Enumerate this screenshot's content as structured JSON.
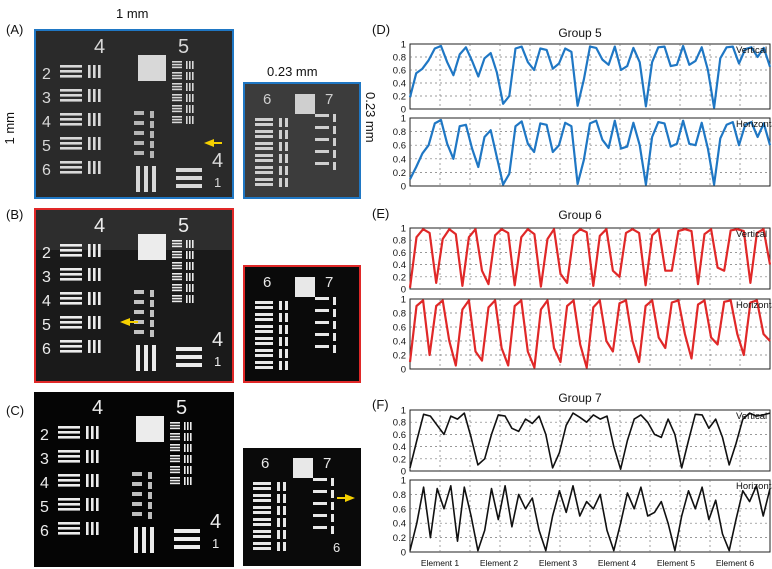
{
  "figure": {
    "panel_labels": [
      "(A)",
      "(B)",
      "(C)",
      "(D)",
      "(E)",
      "(F)"
    ],
    "scale_top": "1 mm",
    "scale_left": "1 mm",
    "inset_top": "0.23 mm",
    "inset_right": "0.23 mm"
  },
  "target": {
    "group_labels": [
      "4",
      "5",
      "4",
      "1"
    ],
    "row_numbers": [
      "2",
      "3",
      "4",
      "5",
      "6"
    ],
    "inset_rows": [
      {
        "group_labels": [
          "6",
          "7"
        ]
      },
      {
        "group_labels": [
          "6",
          "7"
        ]
      },
      {
        "group_labels": [
          "6",
          "7",
          "6"
        ]
      }
    ]
  },
  "colors": {
    "blue": "#1f77c4",
    "red": "#e02828",
    "black": "#111111",
    "arrow": "#f5d000"
  },
  "chart_data": [
    {
      "type": "line",
      "title": "Group 5",
      "subplots": [
        {
          "label": "Vertical",
          "color": "#1f77c4",
          "y": [
            0.18,
            0.55,
            0.62,
            0.75,
            0.93,
            0.97,
            0.72,
            0.52,
            0.84,
            0.95,
            0.74,
            0.5,
            0.78,
            0.86,
            0.56,
            0.08,
            0.2,
            0.93,
            0.96,
            0.72,
            0.6,
            0.93,
            0.91,
            0.62,
            0.7,
            0.93,
            0.88,
            0.05,
            0.45,
            0.96,
            0.94,
            0.76,
            0.68,
            0.96,
            0.6,
            0.66,
            0.94,
            0.72,
            0.04,
            0.72,
            0.95,
            0.96,
            0.66,
            0.68,
            0.97,
            0.68,
            0.74,
            0.95,
            0.6,
            0.02,
            0.78,
            0.95,
            0.96,
            0.7,
            0.92,
            0.95,
            0.8,
            0.94,
            0.65
          ],
          "ylim": [
            0,
            1
          ],
          "yticks": [
            "0",
            "0.2",
            "0.4",
            "0.6",
            "0.8",
            "1"
          ]
        },
        {
          "label": "Horizontal",
          "color": "#1f77c4",
          "y": [
            0.1,
            0.28,
            0.48,
            0.6,
            0.92,
            0.97,
            0.62,
            0.4,
            0.88,
            0.9,
            0.55,
            0.28,
            0.72,
            0.82,
            0.42,
            0.02,
            0.18,
            0.88,
            0.95,
            0.62,
            0.5,
            0.92,
            0.9,
            0.5,
            0.6,
            0.93,
            0.88,
            0.03,
            0.38,
            0.92,
            0.96,
            0.68,
            0.56,
            0.96,
            0.55,
            0.58,
            0.93,
            0.6,
            0.02,
            0.72,
            0.94,
            0.92,
            0.58,
            0.62,
            0.96,
            0.62,
            0.6,
            0.93,
            0.55,
            0.02,
            0.7,
            0.9,
            0.94,
            0.6,
            0.9,
            0.94,
            0.72,
            0.92,
            0.6
          ],
          "ylim": [
            0,
            1
          ],
          "yticks": [
            "0",
            "0.2",
            "0.4",
            "0.6",
            "0.8",
            "1"
          ]
        }
      ]
    },
    {
      "type": "line",
      "title": "Group 6",
      "subplots": [
        {
          "label": "Vertical",
          "color": "#e02828",
          "y": [
            0.02,
            0.85,
            0.98,
            0.92,
            0.1,
            0.82,
            0.98,
            0.9,
            0.05,
            0.85,
            0.98,
            0.3,
            0.08,
            0.88,
            0.98,
            0.92,
            0.06,
            0.85,
            0.98,
            0.9,
            0.04,
            0.82,
            0.98,
            0.25,
            0.1,
            0.88,
            0.98,
            0.93,
            0.05,
            0.87,
            0.98,
            0.3,
            0.2,
            0.92,
            0.98,
            0.92,
            0.06,
            0.88,
            0.98,
            0.3,
            0.3,
            0.95,
            0.98,
            0.95,
            0.08,
            0.9,
            0.98,
            0.35,
            0.3,
            0.96,
            0.98,
            0.95,
            0.1,
            0.92,
            0.98,
            0.4
          ],
          "ylim": [
            0,
            1
          ],
          "yticks": [
            "0",
            "0.2",
            "0.4",
            "0.6",
            "0.8",
            "1"
          ]
        },
        {
          "label": "Horizontal",
          "color": "#e02828",
          "y": [
            0.1,
            0.9,
            0.98,
            0.2,
            0.9,
            0.98,
            0.4,
            0.05,
            0.85,
            0.98,
            0.25,
            0.12,
            0.88,
            0.98,
            0.3,
            0.05,
            0.9,
            0.98,
            0.25,
            0.02,
            0.85,
            0.98,
            0.3,
            0.1,
            0.9,
            0.98,
            0.35,
            0.02,
            0.88,
            0.98,
            0.4,
            0.25,
            0.94,
            0.98,
            0.4,
            0.1,
            0.9,
            0.98,
            0.45,
            0.3,
            0.95,
            0.98,
            0.5,
            0.15,
            0.92,
            0.98,
            0.45,
            0.35,
            0.96,
            0.98,
            0.5,
            0.2,
            0.95,
            0.98,
            0.5,
            0.4
          ],
          "ylim": [
            0,
            1
          ],
          "yticks": [
            "0",
            "0.2",
            "0.4",
            "0.6",
            "0.8",
            "1"
          ]
        }
      ]
    },
    {
      "type": "line",
      "title": "Group 7",
      "xlabels": [
        "Element 1",
        "Element 2",
        "Element 3",
        "Element 4",
        "Element 5",
        "Element 6"
      ],
      "subplots": [
        {
          "label": "Vertical",
          "color": "#111111",
          "y": [
            0.05,
            0.5,
            0.93,
            0.9,
            0.75,
            0.6,
            0.9,
            0.85,
            0.95,
            0.55,
            0.1,
            0.2,
            0.6,
            0.92,
            0.9,
            0.7,
            0.65,
            0.85,
            0.78,
            0.9,
            0.6,
            0.05,
            0.3,
            0.75,
            0.95,
            0.88,
            0.8,
            0.92,
            0.85,
            0.9,
            0.4,
            0.03,
            0.5,
            0.85,
            0.92,
            0.8,
            0.6,
            0.55,
            0.85,
            0.6,
            0.05,
            0.5,
            0.93,
            0.92,
            0.7,
            0.85,
            0.55,
            0.1,
            0.45,
            0.85,
            0.95,
            0.9,
            0.92,
            0.95
          ],
          "ylim": [
            0,
            1
          ],
          "yticks": [
            "0",
            "0.2",
            "0.4",
            "0.6",
            "0.8",
            "1"
          ]
        },
        {
          "label": "Horizontal",
          "color": "#111111",
          "y": [
            0.02,
            0.4,
            0.9,
            0.2,
            0.88,
            0.6,
            0.92,
            0.15,
            0.9,
            0.5,
            0.02,
            0.3,
            0.88,
            0.45,
            0.92,
            0.35,
            0.8,
            0.6,
            0.75,
            0.3,
            0.02,
            0.5,
            0.85,
            0.55,
            0.92,
            0.5,
            0.7,
            0.6,
            0.8,
            0.3,
            0.02,
            0.4,
            0.82,
            0.6,
            0.9,
            0.5,
            0.55,
            0.7,
            0.4,
            0.02,
            0.5,
            0.85,
            0.6,
            0.9,
            0.45,
            0.72,
            0.25,
            0.02,
            0.45,
            0.85,
            0.7,
            0.92,
            0.5,
            0.88
          ],
          "ylim": [
            0,
            1
          ],
          "yticks": [
            "0",
            "0.2",
            "0.4",
            "0.6",
            "0.8",
            "1"
          ]
        }
      ]
    }
  ]
}
